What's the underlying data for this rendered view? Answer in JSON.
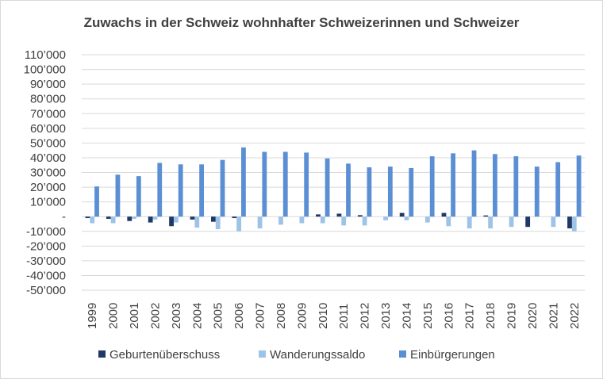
{
  "chart_data": {
    "type": "bar",
    "title": "Zuwachs in der Schweiz wohnhafter Schweizerinnen und Schweizer",
    "xlabel": "",
    "ylabel": "",
    "ylim": [
      -50000,
      110000
    ],
    "y_ticks": [
      110000,
      100000,
      90000,
      80000,
      70000,
      60000,
      50000,
      40000,
      30000,
      20000,
      10000,
      0,
      -10000,
      -20000,
      -30000,
      -40000,
      -50000
    ],
    "y_tick_labels": [
      "110’000",
      "100’000",
      "90’000",
      "80’000",
      "70’000",
      "60’000",
      "50’000",
      "40’000",
      "30’000",
      "20’000",
      "10’000",
      "-",
      "-10’000",
      "-20’000",
      "-30’000",
      "-40’000",
      "-50’000"
    ],
    "grid": true,
    "legend_position": "bottom",
    "categories": [
      "1999",
      "2000",
      "2001",
      "2002",
      "2003",
      "2004",
      "2005",
      "2006",
      "2007",
      "2008",
      "2009",
      "2010",
      "2011",
      "2012",
      "2013",
      "2014",
      "2015",
      "2016",
      "2017",
      "2018",
      "2019",
      "2020",
      "2021",
      "2022"
    ],
    "series": [
      {
        "name": "Geburtenüberschuss",
        "color": "#1f3864",
        "values": [
          -1000,
          -1500,
          -3000,
          -4000,
          -6500,
          -2000,
          -3500,
          -1000,
          0,
          0,
          0,
          1500,
          2000,
          1000,
          0,
          2500,
          0,
          2500,
          0,
          800,
          0,
          -7000,
          0,
          -8000
        ]
      },
      {
        "name": "Wanderungssaldo",
        "color": "#9dc3e6",
        "values": [
          -4500,
          -4500,
          -1500,
          -2000,
          -4000,
          -7500,
          -8500,
          -10000,
          -8000,
          -5500,
          -4500,
          -4500,
          -6000,
          -6000,
          -2500,
          -2500,
          -4000,
          -6500,
          -8000,
          -8000,
          -7000,
          0,
          -7000,
          -10000
        ]
      },
      {
        "name": "Einbürgerungen",
        "color": "#5b8fd4",
        "values": [
          20500,
          28500,
          27500,
          36500,
          35500,
          35500,
          38500,
          47000,
          44000,
          44000,
          43500,
          39500,
          36000,
          33500,
          34000,
          33000,
          41000,
          43000,
          45000,
          42500,
          41000,
          34000,
          37000,
          41500
        ]
      }
    ]
  }
}
